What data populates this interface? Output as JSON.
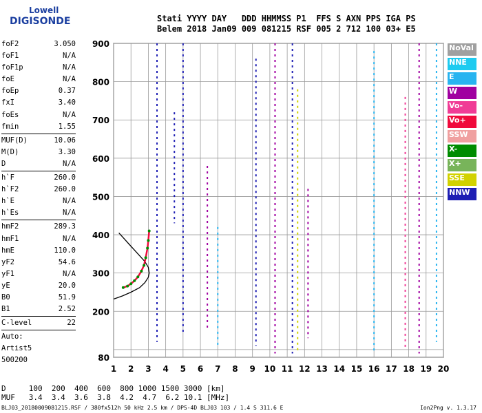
{
  "logo": {
    "line1": "Lowell",
    "line2": "DIGISONDE"
  },
  "header": {
    "line1": "Stati YYYY DAY   DDD HHMMSS P1  FFS S AXN PPS IGA PS",
    "line2": "Belem 2018 Jan09 009 081215 RSF 005 2 712 100 03+ E5"
  },
  "params": {
    "group1": [
      {
        "k": "foF2",
        "v": "3.050"
      },
      {
        "k": "foF1",
        "v": "N/A"
      },
      {
        "k": "foF1p",
        "v": "N/A"
      },
      {
        "k": "foE",
        "v": "N/A"
      },
      {
        "k": "foEp",
        "v": "0.37"
      },
      {
        "k": "fxI",
        "v": "3.40"
      },
      {
        "k": "foEs",
        "v": "N/A"
      },
      {
        "k": "fmin",
        "v": "1.55"
      }
    ],
    "group2": [
      {
        "k": "MUF(D)",
        "v": "10.06"
      },
      {
        "k": "M(D)",
        "v": "3.30"
      },
      {
        "k": "D",
        "v": "N/A"
      }
    ],
    "group3": [
      {
        "k": "h`F",
        "v": "260.0"
      },
      {
        "k": "h`F2",
        "v": "260.0"
      },
      {
        "k": "h`E",
        "v": "N/A"
      },
      {
        "k": "h`Es",
        "v": "N/A"
      }
    ],
    "group4": [
      {
        "k": "hmF2",
        "v": "289.3"
      },
      {
        "k": "hmF1",
        "v": "N/A"
      },
      {
        "k": "hmE",
        "v": "110.0"
      },
      {
        "k": "yF2",
        "v": "54.6"
      },
      {
        "k": "yF1",
        "v": "N/A"
      },
      {
        "k": "yE",
        "v": "20.0"
      },
      {
        "k": "B0",
        "v": "51.9"
      },
      {
        "k": "B1",
        "v": "2.52"
      }
    ],
    "group5": [
      {
        "k": "C-level",
        "v": "22"
      }
    ],
    "auto": [
      "Auto:",
      "Artist5",
      "500200"
    ]
  },
  "muf_table": {
    "d_row": "D     100  200  400  600  800 1000 1500 3000 [km]",
    "muf_row": "MUF   3.4  3.4  3.6  3.8  4.2  4.7  6.2 10.1 [MHz]"
  },
  "footer": {
    "left": "BLJ03_20180009081215.RSF / 380fx512h 50 kHz 2.5 km / DPS-4D BLJ03 103 / 1.4 S 311.6 E",
    "right": "Ion2Png v. 1.3.17"
  },
  "legend": [
    {
      "label": "NoVal",
      "color": "#a0a0a0"
    },
    {
      "label": "NNE",
      "color": "#1ecbf0"
    },
    {
      "label": "E",
      "color": "#28b4f0"
    },
    {
      "label": "W",
      "color": "#a000a0"
    },
    {
      "label": "Vo-",
      "color": "#f03c96"
    },
    {
      "label": "Vo+",
      "color": "#f00a3c"
    },
    {
      "label": "SSW",
      "color": "#f0a0a0"
    },
    {
      "label": "X-",
      "color": "#008c00"
    },
    {
      "label": "X+",
      "color": "#78b45a"
    },
    {
      "label": "SSE",
      "color": "#d2d200"
    },
    {
      "label": "NNW",
      "color": "#1e1eb4"
    }
  ],
  "chart_data": {
    "type": "scatter",
    "xlim": [
      1,
      20
    ],
    "ylim": [
      80,
      900
    ],
    "x_ticks": [
      1,
      2,
      3,
      4,
      5,
      6,
      7,
      8,
      9,
      10,
      11,
      12,
      13,
      14,
      15,
      16,
      17,
      18,
      19,
      20
    ],
    "y_ticks": [
      80,
      100,
      200,
      300,
      400,
      500,
      600,
      700,
      800,
      900
    ],
    "y_tick_labels": [
      "80",
      "",
      "200",
      "300",
      "400",
      "500",
      "600",
      "700",
      "800",
      "900"
    ],
    "grid": true,
    "trace_f2": {
      "x": [
        1.55,
        1.8,
        2.0,
        2.2,
        2.4,
        2.6,
        2.75,
        2.85,
        2.95,
        3.0,
        3.05
      ],
      "y": [
        262,
        266,
        272,
        280,
        290,
        305,
        320,
        340,
        365,
        385,
        410
      ]
    },
    "profile": {
      "x": [
        1.0,
        1.5,
        2.0,
        2.5,
        2.8,
        3.0,
        3.05,
        3.0,
        2.8,
        2.5,
        2.2,
        1.9,
        1.6,
        1.3
      ],
      "y": [
        232,
        240,
        250,
        262,
        275,
        289,
        300,
        315,
        330,
        345,
        360,
        375,
        390,
        405
      ]
    },
    "vertical_streaks": [
      {
        "x": 3.5,
        "y0": 120,
        "y1": 900,
        "dir": "NNW"
      },
      {
        "x": 4.5,
        "y0": 430,
        "y1": 720,
        "dir": "NNW"
      },
      {
        "x": 5.0,
        "y0": 140,
        "y1": 900,
        "dir": "NNW"
      },
      {
        "x": 6.4,
        "y0": 150,
        "y1": 580,
        "dir": "W"
      },
      {
        "x": 7.0,
        "y0": 110,
        "y1": 420,
        "dir": "E"
      },
      {
        "x": 9.2,
        "y0": 110,
        "y1": 860,
        "dir": "NNW"
      },
      {
        "x": 10.3,
        "y0": 90,
        "y1": 900,
        "dir": "W"
      },
      {
        "x": 11.3,
        "y0": 90,
        "y1": 900,
        "dir": "NNW"
      },
      {
        "x": 11.6,
        "y0": 90,
        "y1": 780,
        "dir": "SSE"
      },
      {
        "x": 12.2,
        "y0": 130,
        "y1": 520,
        "dir": "W"
      },
      {
        "x": 16.0,
        "y0": 90,
        "y1": 880,
        "dir": "E"
      },
      {
        "x": 17.8,
        "y0": 100,
        "y1": 760,
        "dir": "Vo-"
      },
      {
        "x": 18.6,
        "y0": 90,
        "y1": 900,
        "dir": "W"
      },
      {
        "x": 19.6,
        "y0": 120,
        "y1": 900,
        "dir": "E"
      }
    ]
  }
}
